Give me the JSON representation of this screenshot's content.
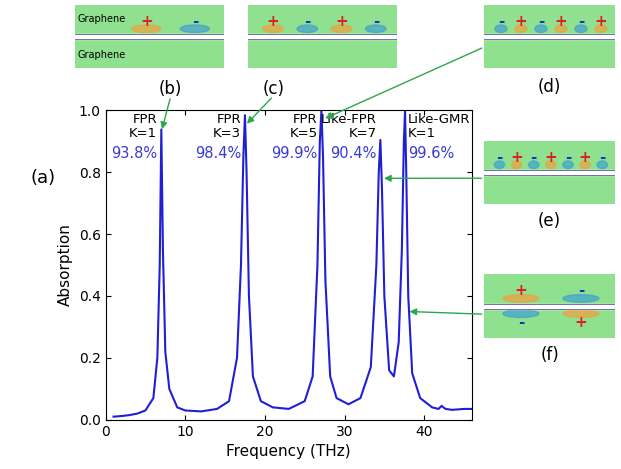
{
  "chart_data": {
    "type": "line",
    "panel_label": "(a)",
    "x_label": "Frequency (THz)",
    "y_label": "Absorption",
    "xlim": [
      0,
      46
    ],
    "xticks": [
      0,
      10,
      20,
      30,
      40
    ],
    "ylim": [
      0,
      1
    ],
    "yticks": [
      {
        "value": 0,
        "label": "0.0"
      },
      {
        "value": 0.2,
        "label": "0.2"
      },
      {
        "value": 0.4,
        "label": "0.4"
      },
      {
        "value": 0.6,
        "label": "0.6"
      },
      {
        "value": 0.8,
        "label": "0.8"
      },
      {
        "value": 1,
        "label": "1.0"
      }
    ],
    "color": "#1f1fd6",
    "x": [
      1,
      2,
      3,
      4,
      5,
      6,
      6.5,
      6.8,
      7.0,
      7.2,
      7.5,
      8,
      9,
      10,
      12,
      14,
      15.5,
      16.5,
      17.0,
      17.3,
      17.5,
      17.7,
      18.0,
      18.5,
      19.5,
      21,
      23,
      25,
      26,
      26.6,
      26.9,
      27.1,
      27.3,
      27.6,
      28.2,
      29,
      30.5,
      32,
      33.3,
      34.0,
      34.3,
      34.5,
      34.7,
      35.0,
      35.6,
      36.2,
      36.8,
      37.2,
      37.45,
      37.6,
      37.75,
      38.0,
      38.5,
      39.5,
      41,
      41.8,
      42.2,
      42.4,
      42.7,
      43.5,
      45,
      46
    ],
    "values": [
      0.01,
      0.012,
      0.015,
      0.02,
      0.03,
      0.07,
      0.2,
      0.5,
      0.938,
      0.55,
      0.22,
      0.1,
      0.04,
      0.03,
      0.027,
      0.035,
      0.06,
      0.2,
      0.5,
      0.85,
      0.984,
      0.8,
      0.4,
      0.14,
      0.06,
      0.04,
      0.035,
      0.06,
      0.14,
      0.5,
      0.9,
      0.999,
      0.85,
      0.45,
      0.14,
      0.07,
      0.05,
      0.07,
      0.17,
      0.5,
      0.8,
      0.904,
      0.75,
      0.4,
      0.16,
      0.14,
      0.25,
      0.55,
      0.9,
      0.996,
      0.8,
      0.4,
      0.15,
      0.07,
      0.04,
      0.035,
      0.045,
      0.04,
      0.035,
      0.032,
      0.035,
      0.035
    ],
    "peaks": [
      {
        "x": 7.0,
        "name": "FPR",
        "order": "K=1",
        "label": "93.8%",
        "field_map": {
          "label": "(b)",
          "top": [
            "+",
            "-"
          ],
          "bottom": [],
          "notes": [
            "Graphene",
            "Graphene"
          ]
        }
      },
      {
        "x": 17.5,
        "name": "FPR",
        "order": "K=3",
        "label": "98.4%",
        "field_map": {
          "label": "(c)",
          "top": [
            "+",
            "-",
            "+",
            "-"
          ],
          "bottom": [],
          "notes": []
        }
      },
      {
        "x": 27.1,
        "name": "FPR",
        "order": "K=5",
        "label": "99.9%",
        "field_map": {
          "label": "(d)",
          "top": [
            "-",
            "+",
            "-",
            "+",
            "-",
            "+"
          ],
          "bottom": [],
          "notes": []
        }
      },
      {
        "x": 34.5,
        "name": "Like-FPR",
        "order": "K=7",
        "label": "90.4%",
        "field_map": {
          "label": "(e)",
          "top": [
            "-",
            "+",
            "-",
            "+",
            "-",
            "+",
            "-"
          ],
          "bottom": [],
          "notes": []
        }
      },
      {
        "x": 37.6,
        "name": "Like-GMR",
        "order": "K=1",
        "label": "99.6%",
        "field_map": {
          "label": "(f)",
          "top": [
            "+",
            "-"
          ],
          "bottom": [
            "-",
            "+"
          ],
          "notes": []
        }
      }
    ]
  }
}
